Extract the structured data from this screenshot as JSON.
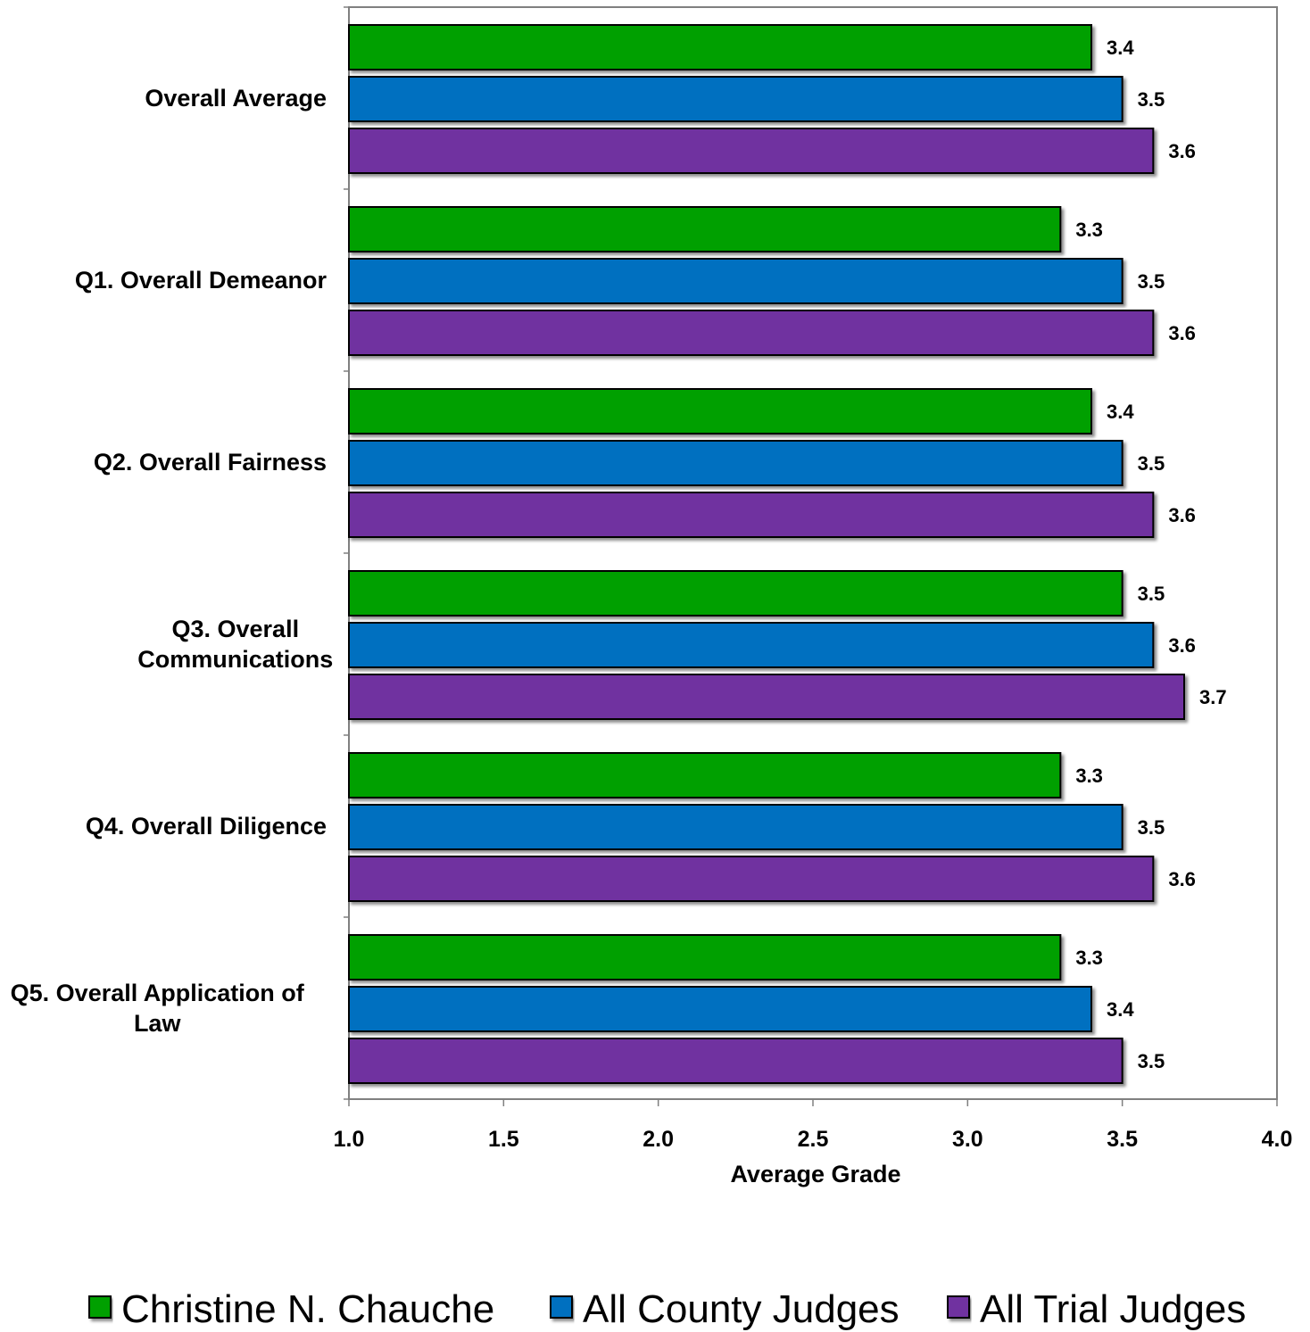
{
  "chart_data": {
    "type": "bar",
    "orientation": "horizontal",
    "categories": [
      "Overall Average",
      "Q1. Overall Demeanor",
      "Q2. Overall Fairness",
      "Q3. Overall Communications",
      "Q4. Overall Diligence",
      "Q5. Overall Application of Law"
    ],
    "category_lines": [
      [
        "Overall Average"
      ],
      [
        "Q1. Overall Demeanor"
      ],
      [
        "Q2. Overall Fairness"
      ],
      [
        "Q3. Overall",
        "Communications"
      ],
      [
        "Q4. Overall Diligence"
      ],
      [
        "Q5. Overall Application of",
        "Law"
      ]
    ],
    "series": [
      {
        "name": "Christine N. Chauche",
        "color": "#00A000",
        "values": [
          3.4,
          3.3,
          3.4,
          3.5,
          3.3,
          3.3
        ]
      },
      {
        "name": "All County Judges",
        "color": "#0070C0",
        "values": [
          3.5,
          3.5,
          3.5,
          3.6,
          3.5,
          3.4
        ]
      },
      {
        "name": "All Trial Judges",
        "color": "#7030A0",
        "values": [
          3.6,
          3.6,
          3.6,
          3.7,
          3.6,
          3.5
        ]
      }
    ],
    "data_labels": [
      [
        "3.4",
        "3.5",
        "3.6"
      ],
      [
        "3.3",
        "3.5",
        "3.6"
      ],
      [
        "3.4",
        "3.5",
        "3.6"
      ],
      [
        "3.5",
        "3.6",
        "3.7"
      ],
      [
        "3.3",
        "3.5",
        "3.6"
      ],
      [
        "3.3",
        "3.4",
        "3.5"
      ]
    ],
    "xlabel": "Average Grade",
    "xlim": [
      1.0,
      4.0
    ],
    "xticks": [
      "1.0",
      "1.5",
      "2.0",
      "2.5",
      "3.0",
      "3.5",
      "4.0"
    ],
    "grid": false,
    "legend_position": "bottom"
  }
}
